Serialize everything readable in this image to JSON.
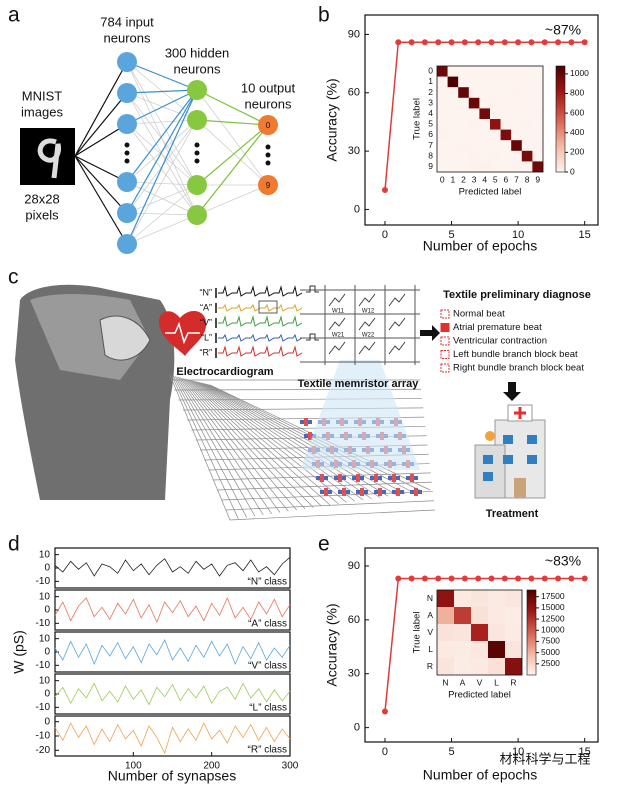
{
  "panel_labels": [
    "a",
    "b",
    "c",
    "d",
    "e"
  ],
  "panel_a": {
    "mnist": [
      "MNIST",
      "images"
    ],
    "pixels": [
      "28x28",
      "pixels"
    ],
    "input_label": [
      "784 input",
      "neurons"
    ],
    "hidden_label": [
      "300 hidden",
      "neurons"
    ],
    "output_label": [
      "10 output",
      "neurons"
    ],
    "output_nodes": [
      "0",
      "9"
    ]
  },
  "panel_c": {
    "ecg_labels": [
      "“N”",
      "“A”",
      "“V”",
      "“L”",
      "“R”"
    ],
    "ecg_title": "Electrocardiogram",
    "weights": [
      "W11",
      "W12",
      "W21",
      "W22"
    ],
    "array_title": "Textile memristor array",
    "diagnose_title": "Textile preliminary diagnose",
    "diagnoses": [
      "Normal beat",
      "Atrial premature beat",
      "Ventricular contraction",
      "Left bundle branch block beat",
      "Right bundle branch block beat"
    ],
    "treatment": "Treatment"
  },
  "watermark": "材料科学与工程",
  "chart_data": [
    {
      "type": "line",
      "x_label": "Number of epochs",
      "y_label": "Accuracy (%)",
      "annotation": "~87%",
      "x": [
        0,
        1,
        2,
        3,
        4,
        5,
        6,
        7,
        8,
        9,
        10,
        11,
        12,
        13,
        14,
        15
      ],
      "values": [
        10,
        86,
        86,
        86,
        86,
        86,
        86,
        86,
        86,
        86,
        86,
        86,
        86,
        86,
        86,
        86
      ],
      "color": "#e03c3c",
      "markers": true,
      "xlim": [
        -1.5,
        16
      ],
      "ylim": [
        -8,
        100
      ],
      "xticks": [
        0,
        5,
        10,
        15
      ],
      "yticks": [
        0,
        30,
        60,
        90
      ]
    },
    {
      "type": "heatmap",
      "x_label": "Predicted label",
      "y_label": "True label",
      "x_categories": [
        "0",
        "1",
        "2",
        "3",
        "4",
        "5",
        "6",
        "7",
        "8",
        "9"
      ],
      "y_categories": [
        "0",
        "1",
        "2",
        "3",
        "4",
        "5",
        "6",
        "7",
        "8",
        "9"
      ],
      "values": [
        [
          975,
          0,
          1,
          0,
          0,
          1,
          2,
          1,
          0,
          0
        ],
        [
          0,
          1126,
          2,
          1,
          0,
          1,
          2,
          0,
          3,
          0
        ],
        [
          4,
          1,
          1005,
          5,
          2,
          0,
          3,
          8,
          4,
          0
        ],
        [
          0,
          0,
          6,
          985,
          0,
          7,
          0,
          5,
          5,
          2
        ],
        [
          1,
          0,
          3,
          0,
          958,
          0,
          5,
          2,
          2,
          11
        ],
        [
          3,
          0,
          0,
          11,
          1,
          862,
          6,
          1,
          6,
          2
        ],
        [
          6,
          3,
          1,
          0,
          4,
          7,
          935,
          0,
          2,
          0
        ],
        [
          1,
          5,
          10,
          2,
          1,
          0,
          0,
          998,
          2,
          9
        ],
        [
          4,
          0,
          4,
          8,
          3,
          6,
          3,
          4,
          938,
          4
        ],
        [
          4,
          5,
          0,
          8,
          12,
          3,
          1,
          6,
          4,
          966
        ]
      ],
      "clim": [
        0,
        1080
      ],
      "colorbar_ticks": [
        0,
        200,
        400,
        600,
        800,
        1000
      ],
      "colormap": [
        "#fdf4f0",
        "#f2b8a4",
        "#d6604d",
        "#a01818",
        "#4d0000"
      ]
    },
    {
      "type": "line",
      "label": "“N” class",
      "color": "#222222",
      "x": [
        0,
        10,
        20,
        30,
        40,
        50,
        60,
        70,
        80,
        90,
        100,
        110,
        120,
        130,
        140,
        150,
        160,
        170,
        180,
        190,
        200,
        210,
        220,
        230,
        240,
        250,
        260,
        270,
        280,
        290,
        300
      ],
      "values": [
        2,
        -3,
        5,
        -1,
        4,
        -6,
        3,
        1,
        -4,
        6,
        -2,
        3,
        -5,
        2,
        7,
        -3,
        1,
        -4,
        5,
        -1,
        3,
        -6,
        2,
        4,
        -2,
        6,
        -3,
        1,
        -5,
        3,
        8
      ],
      "xlim": [
        0,
        300
      ],
      "ylim": [
        -15,
        15
      ],
      "yticks": [
        -10,
        0,
        10
      ]
    },
    {
      "type": "line",
      "label": "“A” class",
      "color": "#e8735a",
      "x": [
        0,
        10,
        20,
        30,
        40,
        50,
        60,
        70,
        80,
        90,
        100,
        110,
        120,
        130,
        140,
        150,
        160,
        170,
        180,
        190,
        200,
        210,
        220,
        230,
        240,
        250,
        260,
        270,
        280,
        290,
        300
      ],
      "values": [
        -4,
        6,
        -8,
        3,
        9,
        -5,
        2,
        -7,
        5,
        -3,
        8,
        -6,
        4,
        -9,
        6,
        -2,
        7,
        -5,
        3,
        -8,
        5,
        -4,
        9,
        -6,
        2,
        -7,
        6,
        -3,
        8,
        -5,
        4
      ],
      "xlim": [
        0,
        300
      ],
      "ylim": [
        -15,
        15
      ],
      "yticks": [
        -10,
        0,
        10
      ]
    },
    {
      "type": "line",
      "label": "“V” class",
      "color": "#5aa6dc",
      "y_label": "W (pS)",
      "x": [
        0,
        10,
        20,
        30,
        40,
        50,
        60,
        70,
        80,
        90,
        100,
        110,
        120,
        130,
        140,
        150,
        160,
        170,
        180,
        190,
        200,
        210,
        220,
        230,
        240,
        250,
        260,
        270,
        280,
        290,
        300
      ],
      "values": [
        3,
        -6,
        8,
        -4,
        6,
        -9,
        5,
        -3,
        7,
        -5,
        4,
        -8,
        6,
        -2,
        9,
        -6,
        3,
        -7,
        5,
        -4,
        8,
        -3,
        6,
        -9,
        4,
        -5,
        7,
        -6,
        3,
        -4,
        5
      ],
      "xlim": [
        0,
        300
      ],
      "ylim": [
        -15,
        15
      ],
      "yticks": [
        -10,
        0,
        10
      ]
    },
    {
      "type": "line",
      "label": "“L” class",
      "color": "#9ccc55",
      "x": [
        0,
        10,
        20,
        30,
        40,
        50,
        60,
        70,
        80,
        90,
        100,
        110,
        120,
        130,
        140,
        150,
        160,
        170,
        180,
        190,
        200,
        210,
        220,
        230,
        240,
        250,
        260,
        270,
        280,
        290,
        300
      ],
      "values": [
        -2,
        5,
        -7,
        4,
        -3,
        8,
        -5,
        2,
        -6,
        6,
        -4,
        3,
        -8,
        5,
        -2,
        7,
        -5,
        4,
        -3,
        6,
        -7,
        2,
        5,
        -4,
        8,
        -3,
        4,
        -6,
        3,
        -5,
        2
      ],
      "xlim": [
        0,
        300
      ],
      "ylim": [
        -15,
        15
      ],
      "yticks": [
        -10,
        0,
        10
      ]
    },
    {
      "type": "line",
      "label": "“R” class",
      "color": "#f0a050",
      "x_label": "Number of synapses",
      "x": [
        0,
        10,
        20,
        30,
        40,
        50,
        60,
        70,
        80,
        90,
        100,
        110,
        120,
        130,
        140,
        150,
        160,
        170,
        180,
        190,
        200,
        210,
        220,
        230,
        240,
        250,
        260,
        270,
        280,
        290,
        300
      ],
      "values": [
        -4,
        -13,
        -1,
        -11,
        -3,
        -16,
        -5,
        -14,
        -2,
        -12,
        -6,
        -17,
        -3,
        -11,
        -22,
        -4,
        -14,
        -5,
        -13,
        -1,
        -12,
        -6,
        -15,
        -3,
        -11,
        -2,
        -13,
        -4,
        -14,
        -5,
        -12
      ],
      "xlim": [
        0,
        300
      ],
      "ylim": [
        -24,
        4
      ],
      "xticks": [
        100,
        200,
        300
      ],
      "yticks": [
        -20,
        -10,
        0
      ]
    },
    {
      "type": "line",
      "x_label": "Number of epochs",
      "y_label": "Accuracy (%)",
      "annotation": "~83%",
      "x": [
        0,
        1,
        2,
        3,
        4,
        5,
        6,
        7,
        8,
        9,
        10,
        11,
        12,
        13,
        14,
        15
      ],
      "values": [
        9,
        83,
        83,
        83,
        83,
        83,
        83,
        83,
        83,
        83,
        83,
        83,
        83,
        83,
        83,
        83
      ],
      "color": "#e03c3c",
      "markers": true,
      "xlim": [
        -1.5,
        16
      ],
      "ylim": [
        -8,
        100
      ],
      "xticks": [
        0,
        5,
        10,
        15
      ],
      "yticks": [
        0,
        30,
        60,
        90
      ]
    },
    {
      "type": "heatmap",
      "x_label": "Predicted label",
      "y_label": "True label",
      "x_categories": [
        "N",
        "A",
        "V",
        "L",
        "R"
      ],
      "y_categories": [
        "N",
        "A",
        "V",
        "L",
        "R"
      ],
      "values": [
        [
          15200,
          900,
          1200,
          800,
          1100
        ],
        [
          5200,
          11800,
          1500,
          900,
          600
        ],
        [
          1400,
          1300,
          13600,
          1100,
          700
        ],
        [
          900,
          700,
          1000,
          18200,
          1200
        ],
        [
          1300,
          600,
          900,
          1500,
          15800
        ]
      ],
      "clim": [
        0,
        19000
      ],
      "colorbar_ticks": [
        2500,
        5000,
        7500,
        10000,
        12500,
        15000,
        17500
      ],
      "colormap": [
        "#fdf4f0",
        "#f2b8a4",
        "#d6604d",
        "#a01818",
        "#4d0000"
      ]
    }
  ]
}
